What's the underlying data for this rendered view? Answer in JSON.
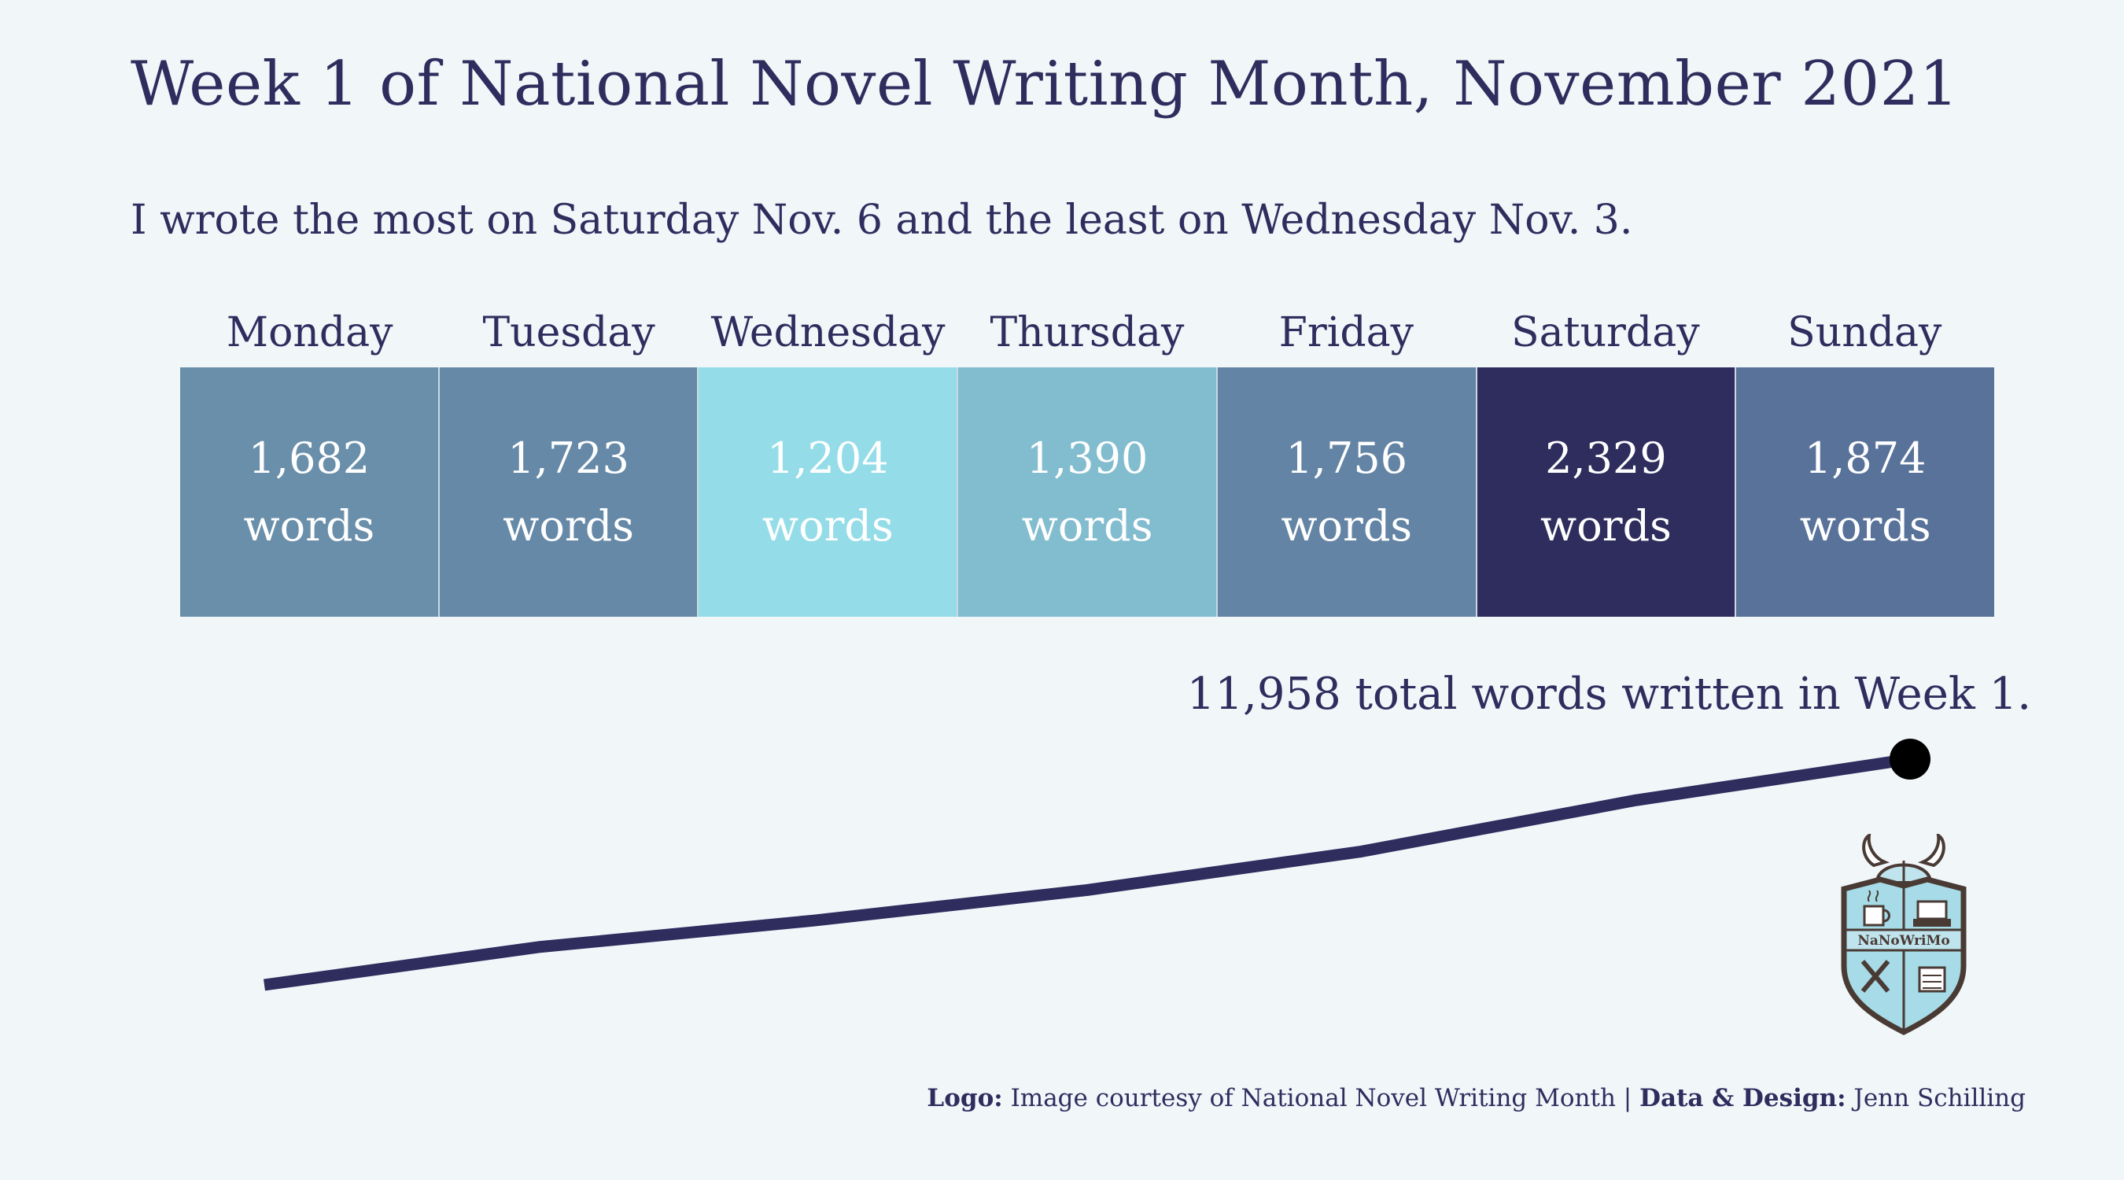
{
  "title": "Week 1 of National Novel Writing Month, November 2021",
  "subtitle": "I wrote the most on Saturday Nov. 6 and the least on Wednesday Nov. 3.",
  "words_unit": "words",
  "total_text": "11,958 total words written in Week 1.",
  "logo_text": "NaNoWriMo",
  "caption": {
    "logo_label": "Logo:",
    "logo_text": "Image courtesy of National Novel Writing Month",
    "separator": "|",
    "design_label": "Data & Design:",
    "design_text": "Jenn Schilling"
  },
  "colors": {
    "background": "#f1f6f9",
    "text": "#2e2d5e",
    "line": "#2e2d5e",
    "tile_low": "#94dde8",
    "tile_high": "#2e2d5e"
  },
  "chart_data": {
    "type": "heatmap",
    "categories": [
      "Monday",
      "Tuesday",
      "Wednesday",
      "Thursday",
      "Friday",
      "Saturday",
      "Sunday"
    ],
    "values": [
      1682,
      1723,
      1204,
      1390,
      1756,
      2329,
      1874
    ],
    "value_labels": [
      "1,682",
      "1,723",
      "1,204",
      "1,390",
      "1,756",
      "2,329",
      "1,874"
    ],
    "tile_colors": [
      "#6a8faa",
      "#6689a8",
      "#94dde8",
      "#82bccf",
      "#6384a4",
      "#2e2d5e",
      "#58729a"
    ],
    "cumulative_line": {
      "type": "line",
      "x": [
        "Monday",
        "Tuesday",
        "Wednesday",
        "Thursday",
        "Friday",
        "Saturday",
        "Sunday"
      ],
      "y": [
        1682,
        3405,
        4609,
        5999,
        7755,
        10084,
        11958
      ],
      "end_marker": true
    }
  }
}
